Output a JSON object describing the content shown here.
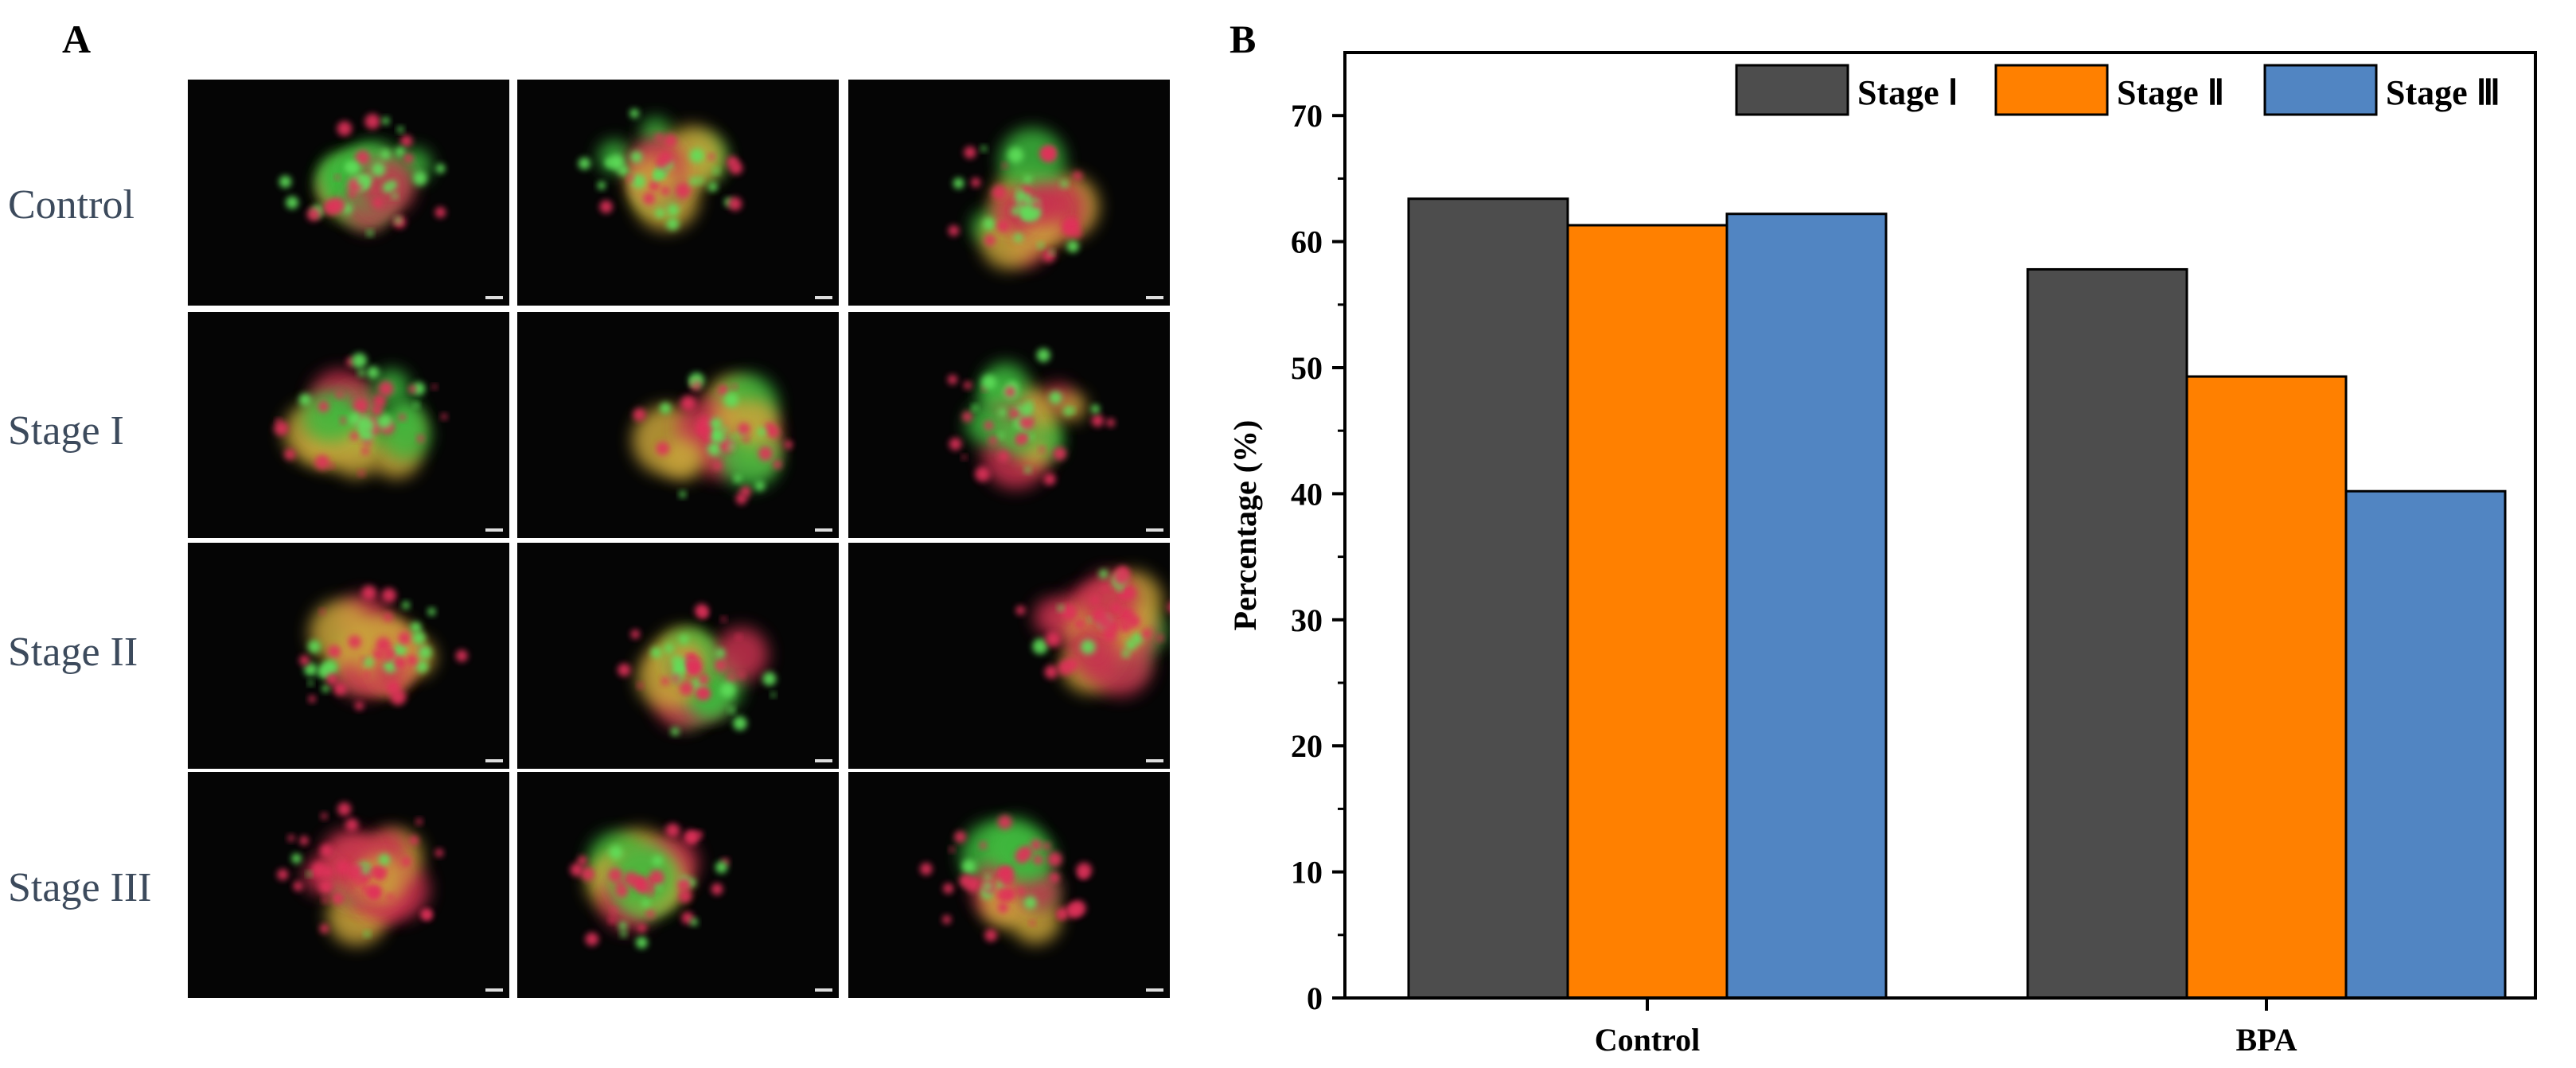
{
  "panel_a": {
    "label": "A",
    "row_labels": [
      "Control",
      "Stage  I",
      "Stage II",
      "Stage III"
    ],
    "image_description": "fluorescence micrographs of stained aggregates",
    "columns": 3
  },
  "panel_b": {
    "label": "B"
  },
  "chart_data": {
    "type": "bar",
    "categories": [
      "Control",
      "BPA"
    ],
    "series": [
      {
        "name": "Stage Ⅰ",
        "values": [
          63.4,
          57.8
        ],
        "color": "#4d4d4d"
      },
      {
        "name": "Stage Ⅱ",
        "values": [
          61.3,
          49.3
        ],
        "color": "#ff8000"
      },
      {
        "name": "Stage Ⅲ",
        "values": [
          62.2,
          40.2
        ],
        "color": "#5185c2"
      }
    ],
    "xlabel": "",
    "ylabel": "Percentage (%)",
    "ylim": [
      0,
      75
    ],
    "yticks": [
      0,
      10,
      20,
      30,
      40,
      50,
      60,
      70
    ],
    "grid": false,
    "legend": "top-right"
  }
}
